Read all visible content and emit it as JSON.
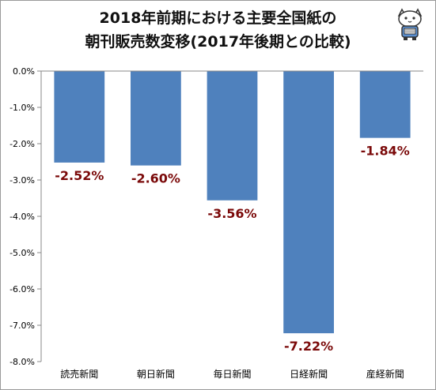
{
  "chart_data": {
    "type": "bar",
    "title_lines": [
      "2018年前期における主要全国紙の",
      "朝刊販売数変移(2017年後期との比較)"
    ],
    "categories": [
      "読売新聞",
      "朝日新聞",
      "毎日新聞",
      "日経新聞",
      "産経新聞"
    ],
    "values": [
      -2.52,
      -2.6,
      -3.56,
      -7.22,
      -1.84
    ],
    "data_labels": [
      "-2.52%",
      "-2.60%",
      "-3.56%",
      "-7.22%",
      "-1.84%"
    ],
    "y_ticks": [
      "0.0%",
      "-1.0%",
      "-2.0%",
      "-3.0%",
      "-4.0%",
      "-5.0%",
      "-6.0%",
      "-7.0%",
      "-8.0%"
    ],
    "ylim": [
      -8,
      0
    ],
    "xlabel": "",
    "ylabel": "",
    "grid": false,
    "legend": "none",
    "colors": {
      "bar": "#4f81bd",
      "label": "#7b0a0a",
      "axis": "#888888",
      "text": "#000000"
    }
  },
  "decor": {
    "mascot_icon": "cat-mascot-icon"
  }
}
